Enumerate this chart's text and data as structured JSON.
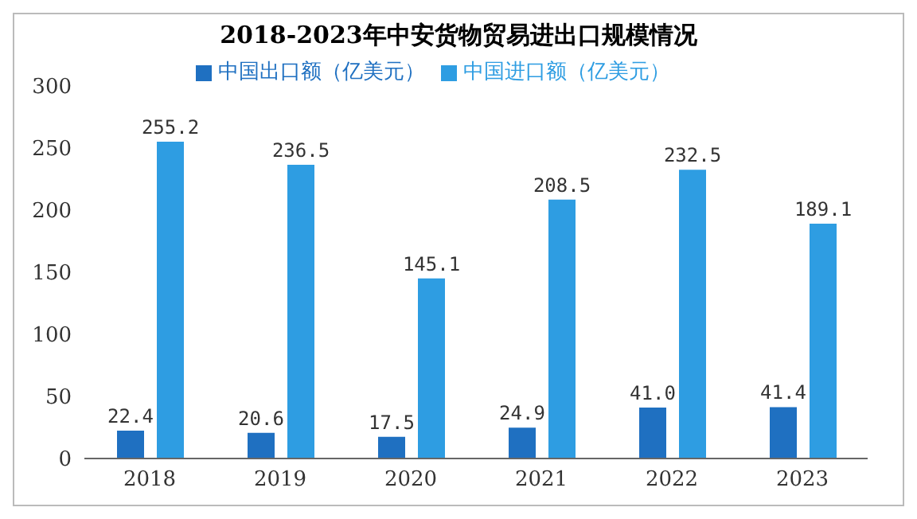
{
  "chart_data": {
    "type": "bar",
    "title": "2018-2023年中安货物贸易进出口规模情况",
    "categories": [
      "2018",
      "2019",
      "2020",
      "2021",
      "2022",
      "2023"
    ],
    "series": [
      {
        "name": "中国出口额（亿美元）",
        "color": "#1f70c1",
        "values": [
          22.4,
          20.6,
          17.5,
          24.9,
          41.0,
          41.4
        ],
        "value_labels": [
          "22.4",
          "20.6",
          "17.5",
          "24.9",
          "41.0",
          "41.4"
        ]
      },
      {
        "name": "中国进口额（亿美元）",
        "color": "#2e9de2",
        "values": [
          255.2,
          236.5,
          145.1,
          208.5,
          232.5,
          189.1
        ],
        "value_labels": [
          "255.2",
          "236.5",
          "145.1",
          "208.5",
          "232.5",
          "189.1"
        ]
      }
    ],
    "ylim": [
      0,
      300
    ],
    "yticks": [
      0,
      50,
      100,
      150,
      200,
      250,
      300
    ],
    "grid": false,
    "legend": "top"
  }
}
